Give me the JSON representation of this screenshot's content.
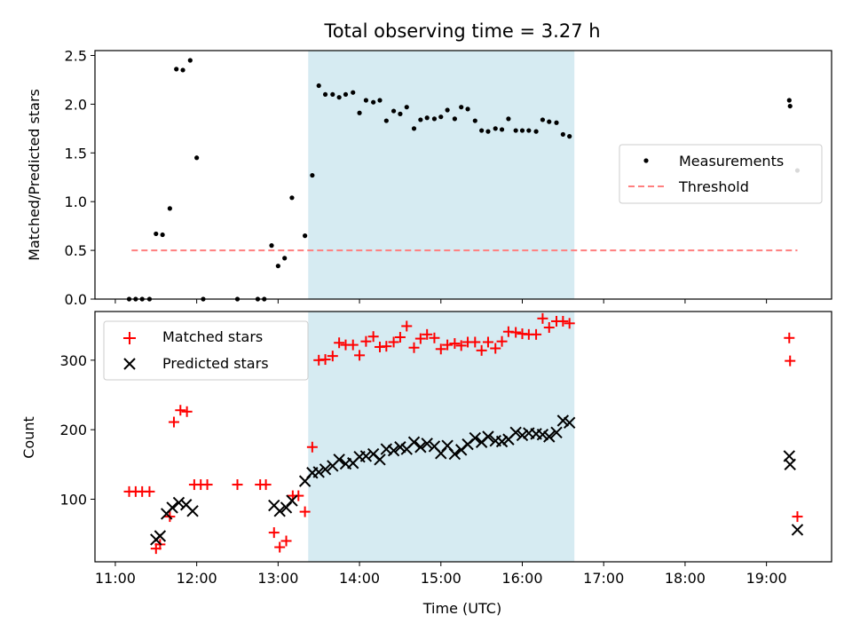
{
  "title": "Total observing time = 3.27 h",
  "colors": {
    "measurement": "#000000",
    "threshold": "#ff7f7f",
    "matched": "#ff0000",
    "predicted": "#000000",
    "span": "#add8e6"
  },
  "chart_data": [
    {
      "type": "scatter",
      "name": "ratio-panel",
      "xlim": [
        10.75,
        19.8
      ],
      "ylim": [
        0,
        2.55
      ],
      "yticks": [
        0.0,
        0.5,
        1.0,
        1.5,
        2.0,
        2.5
      ],
      "ytick_labels": [
        "0.0",
        "0.5",
        "1.0",
        "1.5",
        "2.0",
        "2.5"
      ],
      "xticks": [
        11,
        12,
        13,
        14,
        15,
        16,
        17,
        18,
        19
      ],
      "ylabel": "Matched/Predicted stars",
      "xlabel": "",
      "highlight_span": [
        13.37,
        16.64
      ],
      "legend": {
        "position": "center-right",
        "entries": [
          "Measurements",
          "Threshold"
        ]
      },
      "series": [
        {
          "name": "Measurements",
          "marker": "dot",
          "x": [
            11.17,
            11.25,
            11.33,
            11.42,
            11.5,
            11.58,
            11.67,
            11.75,
            11.83,
            11.92,
            12.0,
            12.08,
            12.5,
            12.75,
            12.83,
            12.92,
            13.0,
            13.08,
            13.17,
            13.33,
            13.42,
            13.5,
            13.58,
            13.67,
            13.75,
            13.83,
            13.92,
            14.0,
            14.08,
            14.17,
            14.25,
            14.33,
            14.42,
            14.5,
            14.58,
            14.67,
            14.75,
            14.83,
            14.92,
            15.0,
            15.08,
            15.17,
            15.25,
            15.33,
            15.42,
            15.5,
            15.58,
            15.67,
            15.75,
            15.83,
            15.92,
            16.0,
            16.08,
            16.17,
            16.25,
            16.33,
            16.42,
            16.5,
            16.58,
            19.28,
            19.29,
            19.38
          ],
          "y": [
            0.0,
            0.0,
            0.0,
            0.0,
            0.67,
            0.66,
            0.93,
            2.36,
            2.35,
            2.45,
            1.45,
            0.0,
            0.0,
            0.0,
            0.0,
            0.55,
            0.34,
            0.42,
            1.04,
            0.65,
            1.27,
            2.19,
            2.1,
            2.1,
            2.07,
            2.1,
            2.12,
            1.91,
            2.04,
            2.02,
            2.04,
            1.83,
            1.93,
            1.9,
            1.97,
            1.75,
            1.84,
            1.86,
            1.85,
            1.87,
            1.94,
            1.85,
            1.97,
            1.95,
            1.83,
            1.73,
            1.72,
            1.75,
            1.74,
            1.85,
            1.73,
            1.73,
            1.73,
            1.72,
            1.84,
            1.82,
            1.81,
            1.69,
            1.67,
            2.04,
            1.98,
            1.32
          ]
        },
        {
          "name": "Threshold",
          "style": "dashed",
          "x": [
            11.2,
            19.38
          ],
          "y": [
            0.5,
            0.5
          ]
        }
      ]
    },
    {
      "type": "scatter",
      "name": "count-panel",
      "xlim": [
        10.75,
        19.8
      ],
      "ylim": [
        10,
        370
      ],
      "yticks": [
        100,
        200,
        300
      ],
      "ytick_labels": [
        "100",
        "200",
        "300"
      ],
      "xticks": [
        11,
        12,
        13,
        14,
        15,
        16,
        17,
        18,
        19
      ],
      "xtick_labels": [
        "11:00",
        "12:00",
        "13:00",
        "14:00",
        "15:00",
        "16:00",
        "17:00",
        "18:00",
        "19:00"
      ],
      "ylabel": "Count",
      "xlabel": "Time (UTC)",
      "highlight_span": [
        13.37,
        16.64
      ],
      "legend": {
        "position": "top-left",
        "entries": [
          "Matched stars",
          "Predicted stars"
        ]
      },
      "series": [
        {
          "name": "Matched stars",
          "marker": "plus",
          "x": [
            11.17,
            11.25,
            11.33,
            11.42,
            11.5,
            11.55,
            11.67,
            11.72,
            11.8,
            11.88,
            11.97,
            12.05,
            12.13,
            12.5,
            12.78,
            12.85,
            12.95,
            13.02,
            13.1,
            13.18,
            13.25,
            13.33,
            13.42,
            13.5,
            13.58,
            13.67,
            13.75,
            13.83,
            13.92,
            14.0,
            14.08,
            14.17,
            14.25,
            14.33,
            14.42,
            14.5,
            14.58,
            14.67,
            14.75,
            14.83,
            14.92,
            15.0,
            15.08,
            15.17,
            15.25,
            15.33,
            15.42,
            15.5,
            15.58,
            15.67,
            15.75,
            15.83,
            15.92,
            16.0,
            16.08,
            16.17,
            16.25,
            16.33,
            16.42,
            16.5,
            16.58,
            19.28,
            19.29,
            19.38
          ],
          "y": [
            111,
            111,
            111,
            111,
            29,
            35,
            75,
            211,
            228,
            226,
            121,
            121,
            121,
            121,
            121,
            121,
            52,
            31,
            40,
            105,
            105,
            82,
            175,
            300,
            301,
            306,
            325,
            322,
            322,
            307,
            327,
            334,
            319,
            320,
            326,
            333,
            349,
            318,
            331,
            337,
            332,
            316,
            322,
            324,
            321,
            326,
            326,
            314,
            326,
            317,
            327,
            341,
            340,
            338,
            337,
            337,
            360,
            347,
            356,
            356,
            353,
            332,
            299,
            75
          ]
        },
        {
          "name": "Predicted stars",
          "marker": "x",
          "x": [
            11.5,
            11.55,
            11.63,
            11.7,
            11.78,
            11.87,
            11.95,
            12.95,
            13.02,
            13.1,
            13.17,
            13.33,
            13.42,
            13.5,
            13.58,
            13.67,
            13.75,
            13.83,
            13.92,
            14.0,
            14.08,
            14.17,
            14.25,
            14.33,
            14.42,
            14.5,
            14.58,
            14.67,
            14.75,
            14.83,
            14.92,
            15.0,
            15.08,
            15.17,
            15.25,
            15.33,
            15.42,
            15.5,
            15.58,
            15.67,
            15.75,
            15.83,
            15.92,
            16.0,
            16.08,
            16.17,
            16.25,
            16.33,
            16.42,
            16.5,
            16.58,
            19.28,
            19.29,
            19.38
          ],
          "y": [
            42,
            47,
            79,
            88,
            95,
            92,
            83,
            91,
            83,
            88,
            98,
            126,
            138,
            139,
            143,
            148,
            157,
            151,
            152,
            161,
            162,
            165,
            157,
            172,
            170,
            175,
            172,
            182,
            175,
            180,
            176,
            166,
            177,
            165,
            171,
            179,
            188,
            182,
            190,
            184,
            183,
            186,
            196,
            192,
            195,
            194,
            193,
            190,
            196,
            213,
            210,
            162,
            150,
            56
          ]
        }
      ]
    }
  ]
}
